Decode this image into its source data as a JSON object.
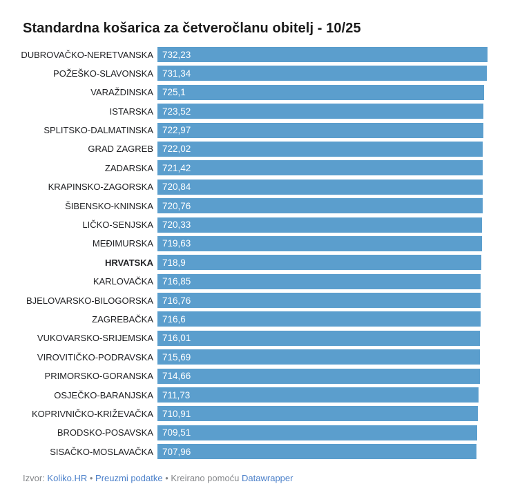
{
  "header": {
    "title": "Standardna košarica za četveročlanu obitelj - 10/25"
  },
  "chart_data": {
    "type": "bar",
    "orientation": "horizontal",
    "title": "Standardna košarica za četveročlanu obitelj - 10/25",
    "categories": [
      "DUBROVAČKO-NERETVANSKA",
      "POŽEŠKO-SLAVONSKA",
      "VARAŽDINSKA",
      "ISTARSKA",
      "SPLITSKO-DALMATINSKA",
      "GRAD ZAGREB",
      "ZADARSKA",
      "KRAPINSKO-ZAGORSKA",
      "ŠIBENSKO-KNINSKA",
      "LIČKO-SENJSKA",
      "MEĐIMURSKA",
      "HRVATSKA",
      "KARLOVAČKA",
      "BJELOVARSKO-BILOGORSKA",
      "ZAGREBAČKA",
      "VUKOVARSKO-SRIJEMSKA",
      "VIROVITIČKO-PODRAVSKA",
      "PRIMORSKO-GORANSKA",
      "OSJEČKO-BARANJSKA",
      "KOPRIVNIČKO-KRIŽEVAČKA",
      "BRODSKO-POSAVSKA",
      "SISAČKO-MOSLAVAČKA"
    ],
    "values": [
      732.23,
      731.34,
      725.1,
      723.52,
      722.97,
      722.02,
      721.42,
      720.84,
      720.76,
      720.33,
      719.63,
      718.9,
      716.85,
      716.76,
      716.6,
      716.01,
      715.69,
      714.66,
      711.73,
      710.91,
      709.51,
      707.96
    ],
    "value_labels": [
      "732,23",
      "731,34",
      "725,1",
      "723,52",
      "722,97",
      "722,02",
      "721,42",
      "720,84",
      "720,76",
      "720,33",
      "719,63",
      "718,9",
      "716,85",
      "716,76",
      "716,6",
      "716,01",
      "715,69",
      "714,66",
      "711,73",
      "710,91",
      "709,51",
      "707,96"
    ],
    "emphasized_category": "HRVATSKA",
    "xlim": [
      0,
      732.23
    ],
    "grid": false,
    "legend": "none",
    "bar_color": "#5b9ecd",
    "value_label_color": "#ffffff",
    "category_label_color": "#202124"
  },
  "footer": {
    "source_prefix": "Izvor:",
    "source_link": "Koliko.HR",
    "separator": "•",
    "download_link": "Preuzmi podatke",
    "created_prefix": "Kreirano pomoću",
    "tool_link": "Datawrapper"
  },
  "colors": {
    "background": "#ffffff",
    "bar": "#5b9ecd",
    "title_text": "#1a1a1a",
    "footer_text": "#85878a",
    "link": "#4a7fc9"
  }
}
